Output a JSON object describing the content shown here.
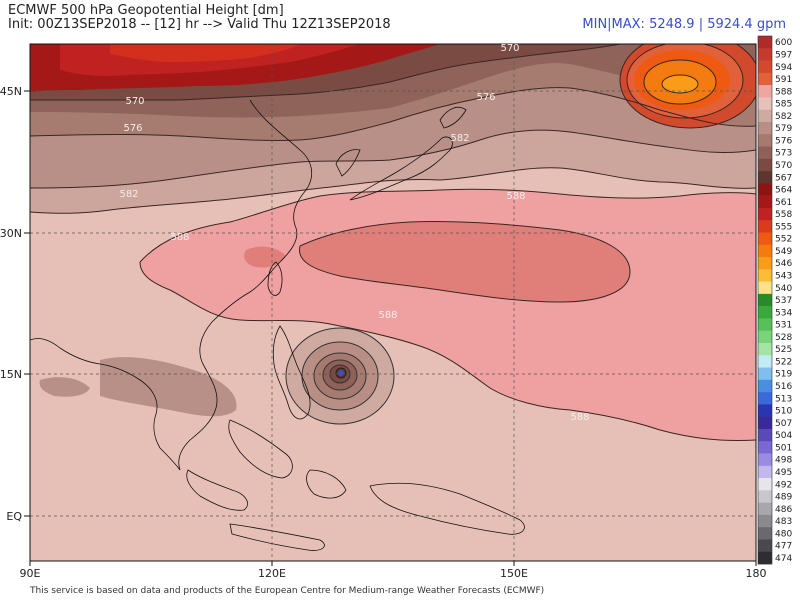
{
  "header": {
    "title": "ECMWF 500 hPa Geopotential Height [dm]",
    "subtitle": "Init: 00Z13SEP2018 -- [12] hr --> Valid Thu 12Z13SEP2018",
    "minmax": "MIN|MAX: 5248.9 | 5924.4 gpm"
  },
  "axes": {
    "lat_labels": [
      "45N",
      "30N",
      "15N",
      "EQ"
    ],
    "lon_labels": [
      "90E",
      "120E",
      "150E",
      "180"
    ]
  },
  "contour_labels": [
    "570",
    "570",
    "576",
    "576",
    "582",
    "582",
    "588",
    "588",
    "588",
    "588"
  ],
  "colorbar": {
    "levels": [
      "600",
      "597",
      "594",
      "591",
      "588",
      "585",
      "582",
      "579",
      "576",
      "573",
      "570",
      "567",
      "564",
      "561",
      "558",
      "555",
      "552",
      "549",
      "546",
      "543",
      "540",
      "537",
      "534",
      "531",
      "528",
      "525",
      "522",
      "519",
      "516",
      "513",
      "510",
      "507",
      "504",
      "501",
      "498",
      "495",
      "492",
      "489",
      "486",
      "483",
      "480",
      "477",
      "474"
    ],
    "colors": [
      "#b12a2a",
      "#c43a2c",
      "#d24a2e",
      "#e0613a",
      "#efa6a2",
      "#e8c2ba",
      "#cfaaa0",
      "#b98f85",
      "#a67a6f",
      "#8f6158",
      "#7a4a43",
      "#5e3630",
      "#8e1414",
      "#a41818",
      "#c02121",
      "#dc3a1d",
      "#ee5a12",
      "#f47b10",
      "#f89c1a",
      "#fbbd38",
      "#fde28a",
      "#2a8a2a",
      "#3aa83a",
      "#58c058",
      "#7ad47a",
      "#a4e4a4",
      "#c2ecf4",
      "#7fbff0",
      "#4a8ee0",
      "#3a6ad8",
      "#2a36b0",
      "#3a2a98",
      "#5a4ab8",
      "#7a6ad0",
      "#9a8ce0",
      "#c2b8ee",
      "#e6e6ea",
      "#c8c8cc",
      "#a8a8ac",
      "#8a8a8e",
      "#6a6a6e",
      "#4a4a4e",
      "#2e2e32"
    ]
  },
  "footer": "This service is based on data and products of the European Centre for Medium-range Weather Forecasts (ECMWF)"
}
